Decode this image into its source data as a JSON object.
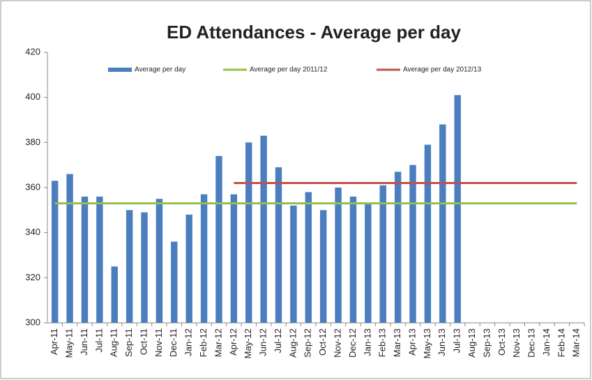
{
  "chart_data": {
    "type": "bar",
    "title": "ED Attendances - Average per day",
    "categories": [
      "Apr-11",
      "May-11",
      "Jun-11",
      "Jul-11",
      "Aug-11",
      "Sep-11",
      "Oct-11",
      "Nov-11",
      "Dec-11",
      "Jan-12",
      "Feb-12",
      "Mar-12",
      "Apr-12",
      "May-12",
      "Jun-12",
      "Jul-12",
      "Aug-12",
      "Sep-12",
      "Oct-12",
      "Nov-12",
      "Dec-12",
      "Jan-13",
      "Feb-13",
      "Mar-13",
      "Apr-13",
      "May-13",
      "Jun-13",
      "Jul-13",
      "Aug-13",
      "Sep-13",
      "Oct-13",
      "Nov-13",
      "Dec-13",
      "Jan-14",
      "Feb-14",
      "Mar-14"
    ],
    "series": [
      {
        "name": "Average per day",
        "type": "bar",
        "color": "#4a7ebf",
        "values": [
          363,
          366,
          356,
          356,
          325,
          350,
          349,
          355,
          336,
          348,
          357,
          374,
          357,
          380,
          383,
          369,
          352,
          358,
          350,
          360,
          356,
          353,
          361,
          367,
          370,
          379,
          388,
          401,
          null,
          null,
          null,
          null,
          null,
          null,
          null,
          null
        ]
      },
      {
        "name": "Average per day  2011/12",
        "type": "line",
        "color": "#92c04a",
        "values": [
          353,
          353,
          353,
          353,
          353,
          353,
          353,
          353,
          353,
          353,
          353,
          353,
          353,
          353,
          353,
          353,
          353,
          353,
          353,
          353,
          353,
          353,
          353,
          353,
          353,
          353,
          353,
          353,
          353,
          353,
          353,
          353,
          353,
          353,
          353,
          353
        ]
      },
      {
        "name": "Average per day 2012/13",
        "type": "line",
        "color": "#c0504d",
        "values": [
          null,
          null,
          null,
          null,
          null,
          null,
          null,
          null,
          null,
          null,
          null,
          null,
          362,
          362,
          362,
          362,
          362,
          362,
          362,
          362,
          362,
          362,
          362,
          362,
          362,
          362,
          362,
          362,
          362,
          362,
          362,
          362,
          362,
          362,
          362,
          362
        ]
      }
    ],
    "ylim": [
      300,
      420
    ],
    "yticks": [
      300,
      320,
      340,
      360,
      380,
      400,
      420
    ],
    "grid": false
  }
}
